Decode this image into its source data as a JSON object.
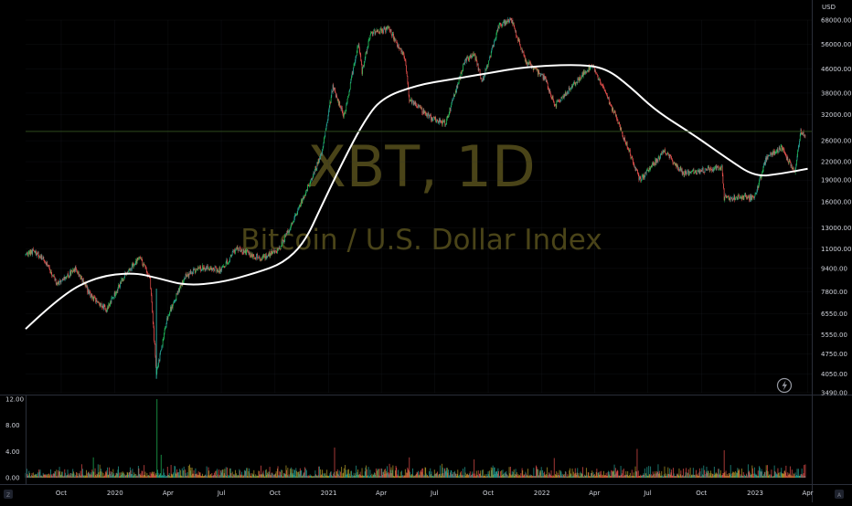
{
  "watermark": {
    "title": "XBT, 1D",
    "subtitle": "Bitcoin / U.S. Dollar Index"
  },
  "price_axis": {
    "currency": "USD",
    "ticks": [
      "68000.00",
      "56000.00",
      "46000.00",
      "38000.00",
      "32000.00",
      "26000.00",
      "22000.00",
      "19000.00",
      "16000.00",
      "13000.00",
      "11000.00",
      "9400.00",
      "7800.00",
      "6550.00",
      "5550.00",
      "4750.00",
      "4050.00",
      "3490.00"
    ]
  },
  "volume_axis": {
    "ticks": [
      "12.00",
      "8.00",
      "4.00",
      "0.00"
    ]
  },
  "time_axis": {
    "ticks": [
      "Oct",
      "2020",
      "Apr",
      "Jul",
      "Oct",
      "2021",
      "Apr",
      "Jul",
      "Oct",
      "2022",
      "Apr",
      "Jul",
      "Oct",
      "2023",
      "Apr"
    ]
  },
  "corner_labels": {
    "left": "Z",
    "right": "A"
  },
  "colors": {
    "background": "#000000",
    "up": "#26a69a",
    "up_bright": "#22c55e",
    "down": "#ef5350",
    "moving_average": "#ffffff",
    "grid": "#2a2e39",
    "current_price_line": "#2e4a1c",
    "watermark": "#4a4418"
  },
  "icons": {
    "chart_action": "lightning-icon"
  },
  "chart_data": {
    "type": "candlestick",
    "symbol": "XBT",
    "interval": "1D",
    "y_scale": "log",
    "ylim": [
      3490,
      68000
    ],
    "x_range": [
      "2019-08-01",
      "2023-04-08"
    ],
    "price_path": [
      [
        "2019-08-01",
        10500
      ],
      [
        "2019-08-15",
        10800
      ],
      [
        "2019-09-01",
        10100
      ],
      [
        "2019-09-25",
        8300
      ],
      [
        "2019-10-26",
        9400
      ],
      [
        "2019-11-20",
        7600
      ],
      [
        "2019-12-18",
        6800
      ],
      [
        "2020-01-15",
        8700
      ],
      [
        "2020-02-12",
        10300
      ],
      [
        "2020-03-01",
        8700
      ],
      [
        "2020-03-12",
        4100
      ],
      [
        "2020-04-01",
        6500
      ],
      [
        "2020-05-01",
        8900
      ],
      [
        "2020-06-01",
        9500
      ],
      [
        "2020-07-01",
        9300
      ],
      [
        "2020-07-27",
        11000
      ],
      [
        "2020-09-06",
        10200
      ],
      [
        "2020-10-08",
        10900
      ],
      [
        "2020-11-01",
        13700
      ],
      [
        "2020-12-01",
        19000
      ],
      [
        "2020-12-20",
        23500
      ],
      [
        "2021-01-08",
        40000
      ],
      [
        "2021-01-27",
        31500
      ],
      [
        "2021-02-21",
        57000
      ],
      [
        "2021-02-27",
        45000
      ],
      [
        "2021-03-13",
        61000
      ],
      [
        "2021-04-14",
        63500
      ],
      [
        "2021-05-12",
        50000
      ],
      [
        "2021-05-19",
        36000
      ],
      [
        "2021-06-22",
        31500
      ],
      [
        "2021-07-20",
        29800
      ],
      [
        "2021-08-22",
        49000
      ],
      [
        "2021-09-07",
        52000
      ],
      [
        "2021-09-21",
        41500
      ],
      [
        "2021-10-20",
        65500
      ],
      [
        "2021-11-10",
        68000
      ],
      [
        "2021-12-04",
        49000
      ],
      [
        "2022-01-05",
        43000
      ],
      [
        "2022-01-24",
        34500
      ],
      [
        "2022-03-28",
        47800
      ],
      [
        "2022-05-09",
        31000
      ],
      [
        "2022-06-18",
        19000
      ],
      [
        "2022-07-30",
        24000
      ],
      [
        "2022-09-01",
        20000
      ],
      [
        "2022-11-05",
        21000
      ],
      [
        "2022-11-09",
        16500
      ],
      [
        "2022-12-31",
        16550
      ],
      [
        "2023-01-20",
        22700
      ],
      [
        "2023-02-16",
        24500
      ],
      [
        "2023-03-10",
        20000
      ],
      [
        "2023-03-20",
        28000
      ],
      [
        "2023-03-28",
        27200
      ]
    ],
    "moving_average_path": [
      [
        "2019-08-01",
        5800
      ],
      [
        "2019-10-01",
        7600
      ],
      [
        "2019-12-01",
        8800
      ],
      [
        "2020-02-01",
        9100
      ],
      [
        "2020-03-15",
        8700
      ],
      [
        "2020-05-01",
        8200
      ],
      [
        "2020-07-01",
        8400
      ],
      [
        "2020-09-01",
        9100
      ],
      [
        "2020-10-15",
        9800
      ],
      [
        "2020-11-20",
        11500
      ],
      [
        "2020-12-20",
        15500
      ],
      [
        "2021-01-25",
        22000
      ],
      [
        "2021-03-01",
        30000
      ],
      [
        "2021-04-01",
        36500
      ],
      [
        "2021-06-01",
        40500
      ],
      [
        "2021-08-01",
        42500
      ],
      [
        "2021-10-01",
        44500
      ],
      [
        "2021-12-01",
        46800
      ],
      [
        "2022-03-01",
        47800
      ],
      [
        "2022-04-20",
        46500
      ],
      [
        "2022-06-01",
        40000
      ],
      [
        "2022-07-15",
        33000
      ],
      [
        "2022-09-15",
        27500
      ],
      [
        "2022-11-15",
        22500
      ],
      [
        "2023-01-01",
        19500
      ],
      [
        "2023-02-15",
        20000
      ],
      [
        "2023-04-01",
        20800
      ]
    ],
    "current_price": 28000,
    "volume_ylim": [
      0,
      12
    ],
    "volume_spikes": [
      [
        "2020-03-13",
        12.0,
        "up"
      ],
      [
        "2020-03-20",
        3.5,
        "up"
      ],
      [
        "2019-11-25",
        3.1,
        "up"
      ],
      [
        "2021-01-11",
        4.6,
        "down"
      ],
      [
        "2021-05-19",
        3.1,
        "down"
      ],
      [
        "2022-06-13",
        4.4,
        "down"
      ],
      [
        "2022-11-09",
        4.2,
        "down"
      ],
      [
        "2021-09-07",
        2.8,
        "down"
      ],
      [
        "2022-01-22",
        3.0,
        "down"
      ]
    ],
    "volume_typical": 0.9
  }
}
